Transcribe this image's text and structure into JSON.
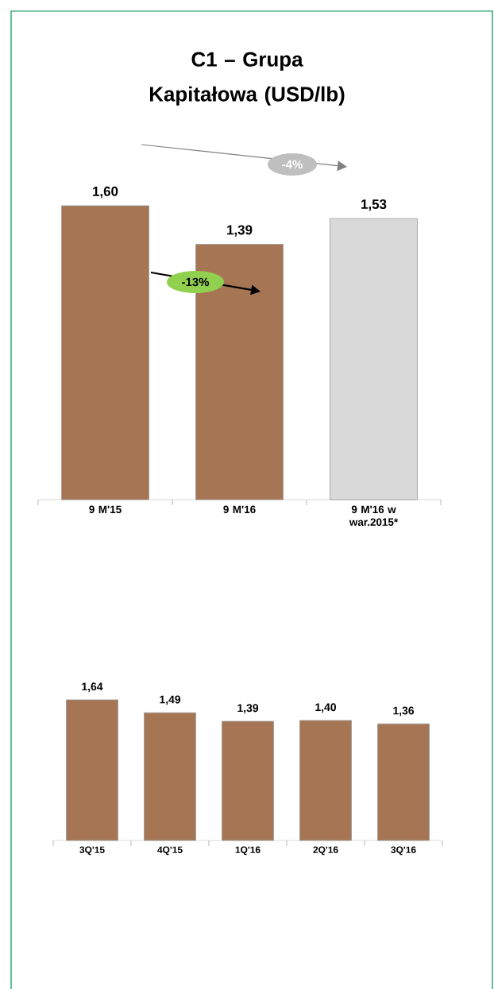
{
  "chart_data": [
    {
      "type": "bar",
      "title": "C1 – Grupa Kapitałowa (USD/lb)",
      "categories": [
        "9 M'15",
        "9 M'16",
        "9 M'16 w war.2015*"
      ],
      "values": [
        1.6,
        1.39,
        1.53
      ],
      "value_labels": [
        "1,60",
        "1,39",
        "1,53"
      ],
      "colors": [
        "#a67654",
        "#a67654",
        "#d9d9d9"
      ],
      "annotations": [
        "-13%",
        "-4%"
      ]
    },
    {
      "type": "bar",
      "categories": [
        "3Q'15",
        "4Q'15",
        "1Q'16",
        "2Q'16",
        "3Q'16"
      ],
      "values": [
        1.64,
        1.49,
        1.39,
        1.4,
        1.36
      ],
      "value_labels": [
        "1,64",
        "1,49",
        "1,39",
        "1,40",
        "1,36"
      ],
      "colors": [
        "#a67654",
        "#a67654",
        "#a67654",
        "#a67654",
        "#a67654"
      ]
    }
  ]
}
